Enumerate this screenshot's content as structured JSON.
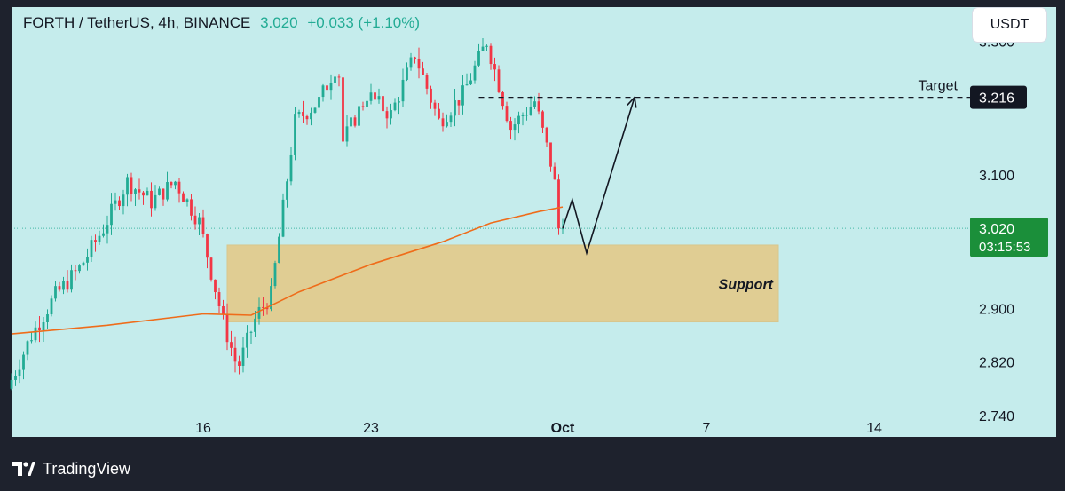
{
  "header": {
    "symbol": "FORTH / TetherUS, 4h, BINANCE",
    "last": "3.020",
    "change": "+0.033 (+1.10%)"
  },
  "currency_button": "USDT",
  "branding": {
    "text": "TradingView",
    "icon": "tradingview-logo-icon"
  },
  "colors": {
    "background": "#c5ecec",
    "up": "#22ab94",
    "down": "#f23645",
    "ma": "#ef6c1a",
    "support_zone": "#e2cc8f",
    "frame": "#1e222d"
  },
  "chart_data": {
    "type": "candlestick",
    "title": "FORTH / TetherUS, 4h, BINANCE",
    "xlabel": "",
    "ylabel": "",
    "ylim": [
      2.708,
      3.351
    ],
    "y_ticks": [
      "3.300",
      "3.100",
      "2.900",
      "2.820",
      "2.740"
    ],
    "x_ticks": [
      {
        "label": "16",
        "date": "Sep 16"
      },
      {
        "label": "23",
        "date": "Sep 23"
      },
      {
        "label": "Oct",
        "date": "Oct 1"
      },
      {
        "label": "7",
        "date": "Oct 7"
      },
      {
        "label": "14",
        "date": "Oct 14"
      }
    ],
    "x_range_days": [
      "Sep 8",
      "Oct 18"
    ],
    "grid": false,
    "candle_interval": "4h",
    "price_path": [
      [
        "Sep 8",
        2.78
      ],
      [
        "Sep 9",
        2.86
      ],
      [
        "Sep 10",
        2.92
      ],
      [
        "Sep 11",
        2.96
      ],
      [
        "Sep 12",
        3.02
      ],
      [
        "Sep 13",
        3.09
      ],
      [
        "Sep 14",
        3.06
      ],
      [
        "Sep 15",
        3.09
      ],
      [
        "Sep 16",
        3.03
      ],
      [
        "Sep 17",
        2.88
      ],
      [
        "Sep 17.6",
        2.81
      ],
      [
        "Sep 18.4",
        2.89
      ],
      [
        "Sep 19",
        2.92
      ],
      [
        "Sep 20",
        3.18
      ],
      [
        "Sep 21",
        3.21
      ],
      [
        "Sep 21.8",
        3.27
      ],
      [
        "Sep 22",
        3.15
      ],
      [
        "Sep 23",
        3.22
      ],
      [
        "Sep 24",
        3.19
      ],
      [
        "Sep 25",
        3.28
      ],
      [
        "Sep 26",
        3.18
      ],
      [
        "Sep 27",
        3.22
      ],
      [
        "Sep 28",
        3.3
      ],
      [
        "Sep 29",
        3.17
      ],
      [
        "Sep 30",
        3.21
      ],
      [
        "Sep 30.8",
        3.1
      ],
      [
        "Oct 1",
        3.02
      ]
    ],
    "last_price": "3.020",
    "bar_countdown": "03:15:53",
    "moving_average": {
      "name": "",
      "values": [
        [
          "Sep 8",
          2.862
        ],
        [
          "Sep 12",
          2.875
        ],
        [
          "Sep 16",
          2.892
        ],
        [
          "Sep 18",
          2.89
        ],
        [
          "Sep 20",
          2.925
        ],
        [
          "Sep 23",
          2.966
        ],
        [
          "Sep 26",
          3.0
        ],
        [
          "Sep 28",
          3.028
        ],
        [
          "Sep 30",
          3.045
        ],
        [
          "Oct 1",
          3.052
        ]
      ]
    },
    "support_zone": {
      "label": "Support",
      "from": "Sep 17",
      "to": "Oct 10",
      "low": 2.88,
      "high": 2.995
    },
    "target": {
      "label": "Target",
      "price": "3.216",
      "from": "Sep 27.5",
      "to": "Oct 18"
    },
    "projection_path": [
      [
        "Oct 1",
        3.02
      ],
      [
        "Oct 1.4",
        3.063
      ],
      [
        "Oct 2",
        2.983
      ],
      [
        "Oct 4",
        3.216
      ]
    ]
  }
}
